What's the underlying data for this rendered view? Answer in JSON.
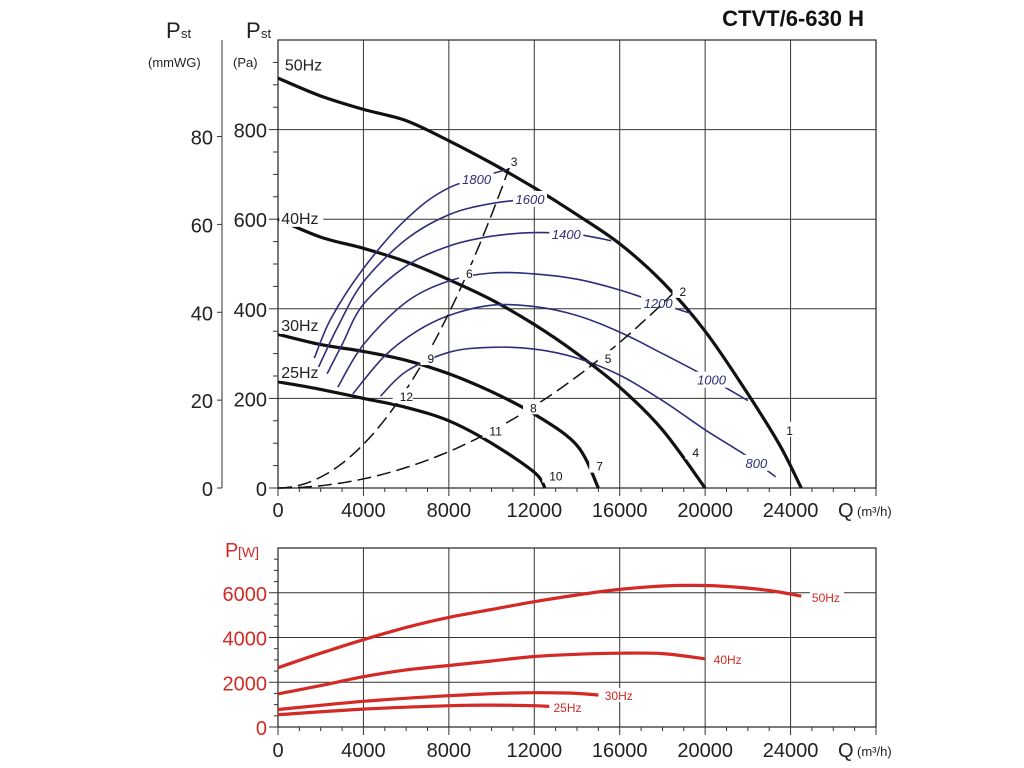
{
  "title": "CTVT/6-630 H",
  "colors": {
    "pressure": "#111111",
    "efficiency": "#2e2e7a",
    "power": "#d42a25",
    "grid": "#333333"
  },
  "chart_data": [
    {
      "type": "line",
      "name": "pressure-chart",
      "xlabel": "Q",
      "xunit": "(m³/h)",
      "ylabel": "P",
      "ylabel_sub": "st",
      "yunit": "(Pa)",
      "y2label": "P",
      "y2label_sub": "st",
      "y2unit": "(mmWG)",
      "xlim": [
        0,
        28000
      ],
      "ylim": [
        0,
        1000
      ],
      "grid": true,
      "x_ticks": [
        "0",
        "4000",
        "8000",
        "12000",
        "16000",
        "20000",
        "24000"
      ],
      "y_ticks": [
        "0",
        "200",
        "400",
        "600",
        "800"
      ],
      "y2_ticks": [
        "0",
        "20",
        "40",
        "60",
        "80"
      ],
      "series": [
        {
          "name": "50Hz",
          "kind": "fan",
          "label_at": [
            320,
            945
          ],
          "points": [
            [
              0,
              915
            ],
            [
              2000,
              875
            ],
            [
              4000,
              845
            ],
            [
              6000,
              820
            ],
            [
              8000,
              775
            ],
            [
              10000,
              725
            ],
            [
              12000,
              670
            ],
            [
              14000,
              610
            ],
            [
              16000,
              545
            ],
            [
              18000,
              460
            ],
            [
              20000,
              350
            ],
            [
              22000,
              210
            ],
            [
              23500,
              95
            ],
            [
              24500,
              0
            ]
          ]
        },
        {
          "name": "40Hz",
          "kind": "fan",
          "label_at": [
            150,
            603
          ],
          "points": [
            [
              0,
              600
            ],
            [
              2000,
              560
            ],
            [
              4000,
              535
            ],
            [
              6000,
              505
            ],
            [
              8000,
              465
            ],
            [
              10000,
              420
            ],
            [
              12000,
              365
            ],
            [
              14000,
              300
            ],
            [
              16000,
              225
            ],
            [
              18000,
              130
            ],
            [
              20000,
              0
            ]
          ]
        },
        {
          "name": "30Hz",
          "kind": "fan",
          "label_at": [
            150,
            364
          ],
          "points": [
            [
              0,
              343
            ],
            [
              2000,
              320
            ],
            [
              4000,
              305
            ],
            [
              6000,
              285
            ],
            [
              8000,
              255
            ],
            [
              10000,
              215
            ],
            [
              12000,
              165
            ],
            [
              14000,
              95
            ],
            [
              15000,
              0
            ]
          ]
        },
        {
          "name": "25Hz",
          "kind": "fan",
          "label_at": [
            150,
            259
          ],
          "points": [
            [
              0,
              237
            ],
            [
              2000,
              220
            ],
            [
              4000,
              200
            ],
            [
              6000,
              180
            ],
            [
              8000,
              150
            ],
            [
              10000,
              100
            ],
            [
              12000,
              35
            ],
            [
              12500,
              0
            ]
          ]
        },
        {
          "name": "1800",
          "kind": "iso",
          "label_q": 9300,
          "points": [
            [
              1700,
              290
            ],
            [
              2500,
              380
            ],
            [
              4000,
              490
            ],
            [
              6000,
              600
            ],
            [
              8000,
              670
            ],
            [
              10800,
              712
            ]
          ]
        },
        {
          "name": "1600",
          "kind": "iso",
          "label_q": 11800,
          "points": [
            [
              1900,
              270
            ],
            [
              2800,
              360
            ],
            [
              4000,
              460
            ],
            [
              6000,
              555
            ],
            [
              8000,
              610
            ],
            [
              10000,
              635
            ],
            [
              12300,
              648
            ]
          ]
        },
        {
          "name": "1400",
          "kind": "iso",
          "label_q": 13500,
          "points": [
            [
              2300,
              255
            ],
            [
              3000,
              320
            ],
            [
              4000,
              410
            ],
            [
              6000,
              495
            ],
            [
              8000,
              540
            ],
            [
              10000,
              562
            ],
            [
              12000,
              570
            ],
            [
              14000,
              566
            ],
            [
              15600,
              552
            ]
          ]
        },
        {
          "name": "1200",
          "kind": "iso",
          "label_q": 17800,
          "points": [
            [
              2800,
              225
            ],
            [
              4000,
              320
            ],
            [
              6000,
              415
            ],
            [
              8000,
              462
            ],
            [
              10000,
              480
            ],
            [
              12000,
              478
            ],
            [
              14000,
              466
            ],
            [
              16000,
              442
            ],
            [
              18000,
              410
            ],
            [
              19300,
              390
            ]
          ]
        },
        {
          "name": "1000",
          "kind": "iso",
          "label_q": 20300,
          "points": [
            [
              3500,
              210
            ],
            [
              5000,
              295
            ],
            [
              6500,
              350
            ],
            [
              8000,
              385
            ],
            [
              10000,
              408
            ],
            [
              12000,
              405
            ],
            [
              14000,
              385
            ],
            [
              16000,
              348
            ],
            [
              18000,
              300
            ],
            [
              20000,
              250
            ],
            [
              22000,
              195
            ]
          ]
        },
        {
          "name": "800",
          "kind": "iso",
          "label_q": 22400,
          "points": [
            [
              4800,
              205
            ],
            [
              6000,
              260
            ],
            [
              8000,
              303
            ],
            [
              10000,
              314
            ],
            [
              12000,
              310
            ],
            [
              14000,
              290
            ],
            [
              16000,
              252
            ],
            [
              18000,
              195
            ],
            [
              20000,
              130
            ],
            [
              22000,
              70
            ],
            [
              23300,
              25
            ]
          ]
        },
        {
          "name": "system-A",
          "kind": "system",
          "k": 6.1e-06,
          "qmax": 10900
        },
        {
          "name": "system-B",
          "kind": "system",
          "k": 1.27e-06,
          "qmax": 18800
        }
      ],
      "point_labels": [
        {
          "text": "1",
          "q": 23800,
          "p": 130
        },
        {
          "text": "2",
          "q": 18800,
          "p": 440
        },
        {
          "text": "3",
          "q": 10900,
          "p": 730
        },
        {
          "text": "4",
          "q": 19400,
          "p": 80
        },
        {
          "text": "5",
          "q": 15300,
          "p": 290
        },
        {
          "text": "6",
          "q": 8800,
          "p": 480
        },
        {
          "text": "7",
          "q": 14900,
          "p": 50
        },
        {
          "text": "8",
          "q": 11800,
          "p": 180
        },
        {
          "text": "9",
          "q": 7000,
          "p": 290
        },
        {
          "text": "10",
          "q": 12700,
          "p": 28
        },
        {
          "text": "11",
          "q": 9900,
          "p": 128
        },
        {
          "text": "12",
          "q": 5700,
          "p": 205
        }
      ]
    },
    {
      "type": "line",
      "name": "power-chart",
      "xlabel": "Q",
      "xunit": "(m³/h)",
      "ylabel": "P",
      "yunit": "[W]",
      "xlim": [
        0,
        28000
      ],
      "ylim": [
        0,
        8000
      ],
      "grid": true,
      "x_ticks": [
        "0",
        "4000",
        "8000",
        "12000",
        "16000",
        "20000",
        "24000"
      ],
      "y_ticks": [
        "0",
        "2000",
        "4000",
        "6000"
      ],
      "series": [
        {
          "name": "50Hz",
          "label_at": [
            25000,
            5800
          ],
          "points": [
            [
              0,
              2650
            ],
            [
              2000,
              3300
            ],
            [
              4000,
              3900
            ],
            [
              6000,
              4450
            ],
            [
              8000,
              4900
            ],
            [
              10000,
              5250
            ],
            [
              12000,
              5600
            ],
            [
              14000,
              5900
            ],
            [
              16000,
              6150
            ],
            [
              18000,
              6300
            ],
            [
              19500,
              6330
            ],
            [
              21000,
              6280
            ],
            [
              23000,
              6100
            ],
            [
              24500,
              5850
            ]
          ]
        },
        {
          "name": "40Hz",
          "label_at": [
            20400,
            3050
          ],
          "points": [
            [
              0,
              1480
            ],
            [
              2000,
              1850
            ],
            [
              4000,
              2250
            ],
            [
              6000,
              2550
            ],
            [
              8000,
              2750
            ],
            [
              10000,
              2950
            ],
            [
              12000,
              3150
            ],
            [
              14000,
              3250
            ],
            [
              16000,
              3300
            ],
            [
              18000,
              3280
            ],
            [
              20000,
              3050
            ]
          ]
        },
        {
          "name": "30Hz",
          "label_at": [
            15300,
            1430
          ],
          "points": [
            [
              0,
              780
            ],
            [
              4000,
              1150
            ],
            [
              8000,
              1400
            ],
            [
              11000,
              1520
            ],
            [
              13500,
              1520
            ],
            [
              15000,
              1430
            ]
          ]
        },
        {
          "name": "25Hz",
          "label_at": [
            12900,
            900
          ],
          "points": [
            [
              0,
              550
            ],
            [
              4000,
              800
            ],
            [
              8000,
              950
            ],
            [
              10000,
              980
            ],
            [
              12000,
              950
            ],
            [
              12700,
              920
            ]
          ]
        }
      ]
    }
  ]
}
